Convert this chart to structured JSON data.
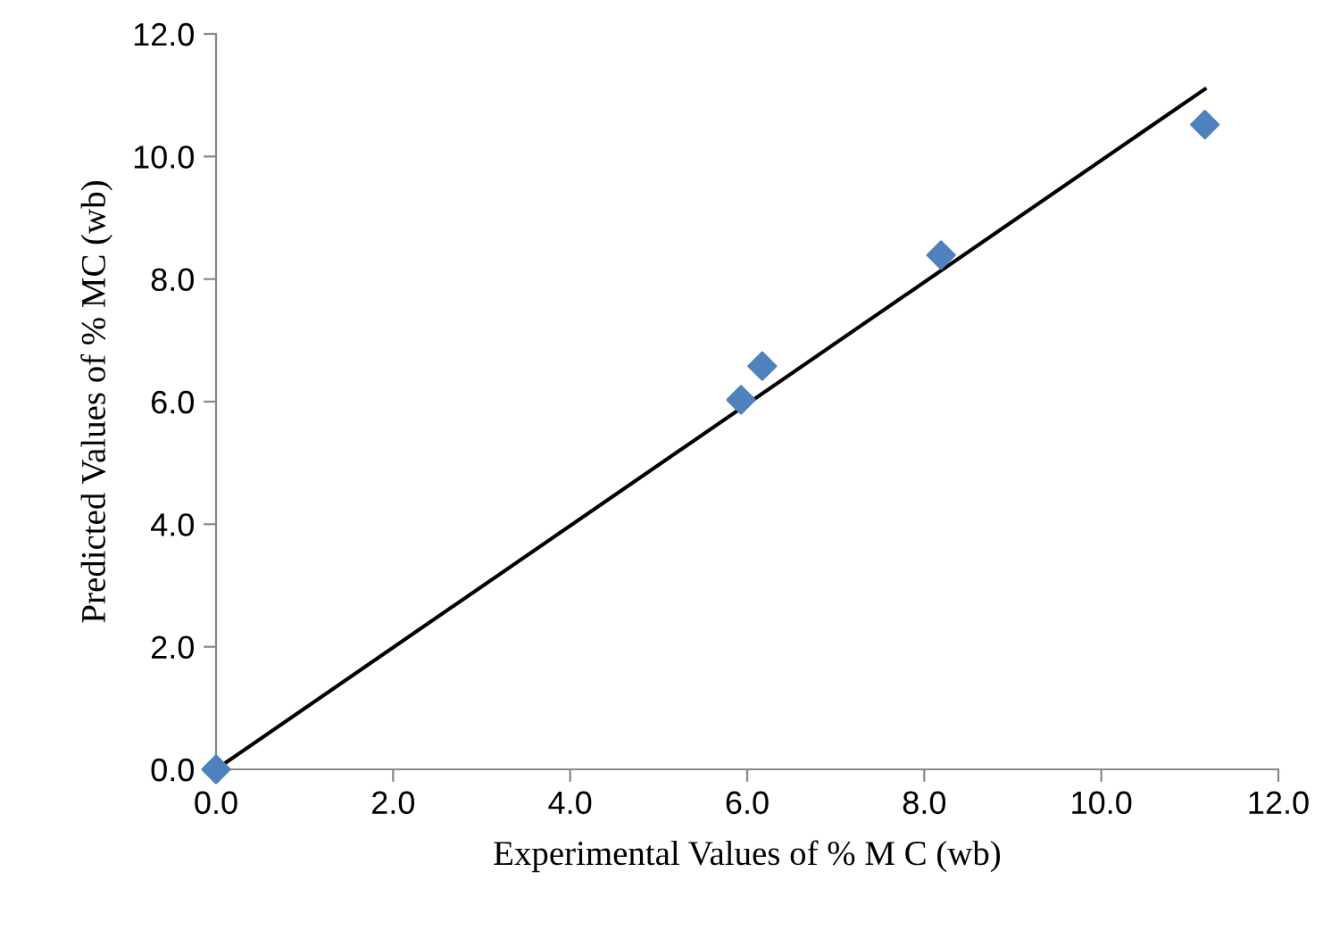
{
  "chart_data": {
    "type": "scatter",
    "xlabel": "Experimental Values of % M C (wb)",
    "ylabel": "Predicted Values of % MC (wb)",
    "xlim": [
      0,
      12
    ],
    "ylim": [
      0,
      12
    ],
    "xticks": [
      {
        "value": 0,
        "label": "0.0"
      },
      {
        "value": 2,
        "label": "2.0"
      },
      {
        "value": 4,
        "label": "4.0"
      },
      {
        "value": 6,
        "label": "6.0"
      },
      {
        "value": 8,
        "label": "8.0"
      },
      {
        "value": 10,
        "label": "10.0"
      },
      {
        "value": 12,
        "label": "12.0"
      }
    ],
    "yticks": [
      {
        "value": 0,
        "label": "0.0"
      },
      {
        "value": 2,
        "label": "2.0"
      },
      {
        "value": 4,
        "label": "4.0"
      },
      {
        "value": 6,
        "label": "6.0"
      },
      {
        "value": 8,
        "label": "8.0"
      },
      {
        "value": 10,
        "label": "10.0"
      },
      {
        "value": 12,
        "label": "12.0"
      }
    ],
    "grid": false,
    "legend": false,
    "series": [
      {
        "color": "#4f81bd",
        "marker": "diamond",
        "x": [
          0,
          5.93,
          6.17,
          8.19,
          11.17
        ],
        "values": [
          0,
          6.03,
          6.58,
          8.39,
          10.52
        ]
      },
      {
        "type": "line",
        "color": "#000000",
        "marker": "none",
        "line_style": "solid",
        "x": [
          0,
          11.17
        ],
        "values": [
          0,
          11.1
        ]
      }
    ]
  }
}
